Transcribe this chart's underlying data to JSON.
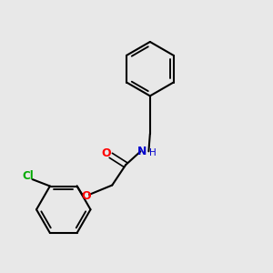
{
  "background_color": "#e8e8e8",
  "bond_color": "#000000",
  "atom_colors": {
    "O": "#ff0000",
    "N": "#0000cc",
    "Cl": "#00aa00",
    "C": "#000000"
  },
  "figsize": [
    3.0,
    3.0
  ],
  "dpi": 100
}
